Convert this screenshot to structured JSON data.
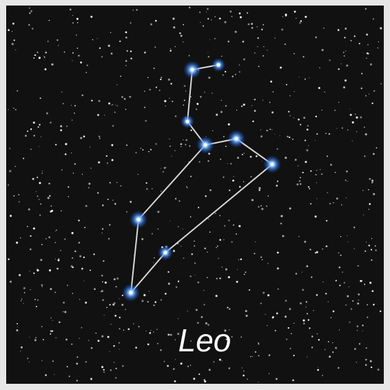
{
  "title": "Leo"
}
